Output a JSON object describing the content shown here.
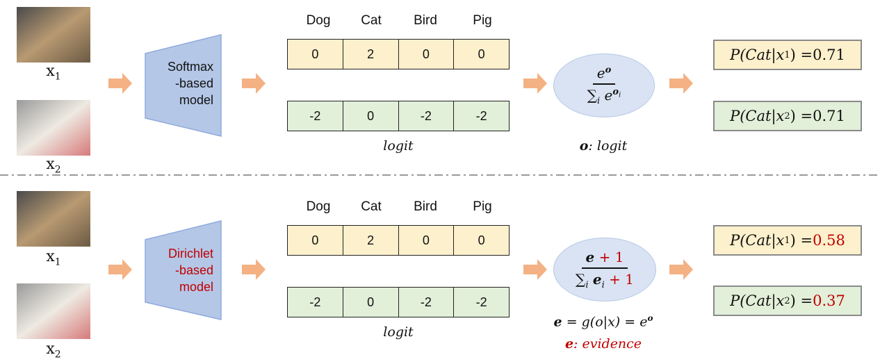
{
  "inputs": [
    {
      "label": "x",
      "sub": "1",
      "icon": "tabby-cat-image"
    },
    {
      "label": "x",
      "sub": "2",
      "icon": "fluffy-kitten-image"
    }
  ],
  "classes": [
    "Dog",
    "Cat",
    "Bird",
    "Pig"
  ],
  "logits": {
    "x1": [
      "0",
      "2",
      "0",
      "0"
    ],
    "x2": [
      "-2",
      "0",
      "-2",
      "-2"
    ],
    "label": "logit"
  },
  "top": {
    "model_lines": [
      "Softmax",
      "-based",
      "model"
    ],
    "formula_num": "e",
    "formula_num_sup": "o",
    "formula_den": "∑",
    "formula_den_sub": "i",
    "formula_den_e": "e",
    "formula_den_sup": "o",
    "formula_den_sup_sub": "i",
    "note_bold": "o",
    "note_rest": ": logit",
    "results": [
      {
        "prefix": "P(Cat|x",
        "sub": "1",
        "suffix": ") = ",
        "value": "0.71"
      },
      {
        "prefix": "P(Cat|x",
        "sub": "2",
        "suffix": ") = ",
        "value": "0.71"
      }
    ]
  },
  "bottom": {
    "model_lines": [
      "Dirichlet",
      "-based",
      "model"
    ],
    "num_e": "e",
    "num_plus": " + 1",
    "den_sum": "∑",
    "den_sub": "i",
    "den_e": "e",
    "den_e_sub": "i",
    "den_plus": " + 1",
    "def_formula": "= g(o|x) = e",
    "def_sup": "o",
    "note_bold": "e",
    "note_rest": ": evidence",
    "results": [
      {
        "prefix": "P(Cat|x",
        "sub": "1",
        "suffix": ") = ",
        "value": "0.58"
      },
      {
        "prefix": "P(Cat|x",
        "sub": "2",
        "suffix": ") = ",
        "value": "0.37"
      }
    ]
  },
  "colors": {
    "arrow": "#f4b183",
    "model": "#b4c7e7",
    "highlight": "#c00000",
    "yellow": "#fdf0cc",
    "green": "#e2efd9"
  }
}
